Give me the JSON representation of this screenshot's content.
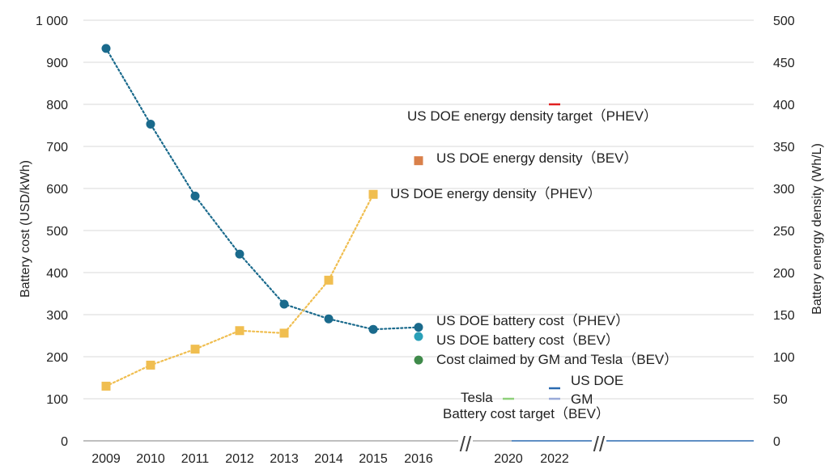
{
  "chart_data": {
    "type": "line",
    "title": "",
    "ylabel_left": "Battery cost (USD/kWh)",
    "ylabel_right": "Battery energy density (Wh/L)",
    "ylim_left": [
      0,
      1000
    ],
    "ylim_right": [
      0,
      500
    ],
    "yticks_left": [
      "0",
      "100",
      "200",
      "300",
      "400",
      "500",
      "600",
      "700",
      "800",
      "900",
      "1 000"
    ],
    "yticks_right": [
      "0",
      "50",
      "100",
      "150",
      "200",
      "250",
      "300",
      "350",
      "400",
      "450",
      "500"
    ],
    "categories": [
      "2009",
      "2010",
      "2011",
      "2012",
      "2013",
      "2014",
      "2015",
      "2016",
      "2020",
      "2022"
    ],
    "grid": true,
    "axis_break_symbol": "//",
    "series": [
      {
        "name": "US DOE battery cost（PHEV）",
        "axis": "left",
        "color": "#1a6a8c",
        "marker": "circle",
        "line": "dotted",
        "x": [
          "2009",
          "2010",
          "2011",
          "2012",
          "2013",
          "2014",
          "2015",
          "2016"
        ],
        "values": [
          933,
          753,
          582,
          444,
          325,
          290,
          265,
          270
        ]
      },
      {
        "name": "US DOE energy density（PHEV）",
        "axis": "right",
        "color": "#f0be50",
        "marker": "square",
        "line": "dotted",
        "x": [
          "2009",
          "2010",
          "2011",
          "2012",
          "2013",
          "2014",
          "2015"
        ],
        "values": [
          65,
          90,
          109,
          131,
          128,
          191,
          293
        ]
      },
      {
        "name": "US DOE energy density（BEV）",
        "axis": "right",
        "color": "#d9804a",
        "marker": "square",
        "x": [
          "2016"
        ],
        "values": [
          333
        ]
      },
      {
        "name": "US DOE battery cost（BEV）",
        "axis": "left",
        "color": "#2aa0b8",
        "marker": "circle",
        "x": [
          "2016"
        ],
        "values": [
          248
        ]
      },
      {
        "name": "Cost claimed by GM and Tesla（BEV）",
        "axis": "left",
        "color": "#3f8a4a",
        "marker": "circle",
        "x": [
          "2016"
        ],
        "values": [
          192
        ]
      },
      {
        "name": "US DOE energy density target（PHEV）",
        "axis": "right",
        "color": "#e02020",
        "marker": "dash",
        "x": [
          "2022"
        ],
        "values": [
          400
        ]
      },
      {
        "name": "US DOE",
        "axis": "left",
        "color": "#2a6ab0",
        "marker": "dash",
        "x": [
          "2022"
        ],
        "values": [
          125
        ]
      },
      {
        "name": "GM",
        "axis": "left",
        "color": "#9aaad8",
        "marker": "dash",
        "x": [
          "2022"
        ],
        "values": [
          100
        ]
      },
      {
        "name": "Tesla",
        "axis": "left",
        "color": "#8ed07a",
        "marker": "dash",
        "x": [
          "2020"
        ],
        "values": [
          100
        ]
      }
    ],
    "annotations": {
      "target_caption": "Battery cost target（BEV）"
    }
  }
}
